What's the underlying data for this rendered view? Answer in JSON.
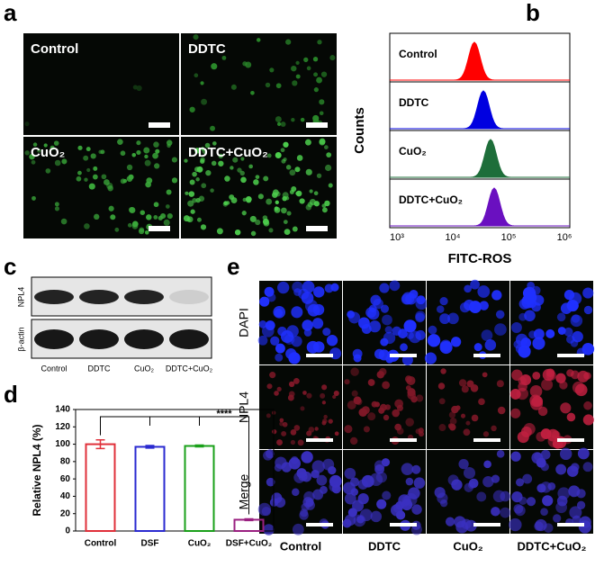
{
  "chart_data": {
    "type": "bar",
    "y_label": "Relative NPL4 (%)",
    "categories": [
      "Control",
      "DSF",
      "CuO₂",
      "DSF+CuO₂"
    ],
    "values": [
      100,
      97,
      98,
      13
    ],
    "errors": [
      5,
      1.5,
      1,
      1
    ],
    "colors": [
      "#e0303a",
      "#2a2ad0",
      "#1aa01a",
      "#9a2080"
    ],
    "ylim": [
      0,
      140
    ],
    "yticks": [
      0,
      20,
      40,
      60,
      80,
      100,
      120,
      140
    ],
    "annotation": "****"
  },
  "panels": {
    "a": {
      "letter": "a",
      "labels": [
        "Control",
        "DDTC",
        "CuO₂",
        "DDTC+CuO₂"
      ]
    },
    "b": {
      "letter": "b",
      "labels": [
        "Control",
        "DDTC",
        "CuO₂",
        "DDTC+CuO₂"
      ],
      "y_label": "Counts",
      "x_label": "FITC-ROS",
      "xticks": [
        "10³",
        "10⁴",
        "10⁵",
        "10⁶"
      ]
    },
    "c": {
      "letter": "c",
      "rows": [
        "NPL4",
        "β-actin"
      ],
      "columns": [
        "Control",
        "DDTC",
        "CuO₂",
        "DDTC+CuO₂"
      ]
    },
    "d": {
      "letter": "d"
    },
    "e": {
      "letter": "e",
      "rows": [
        "DAPI",
        "NPL4",
        "Merge"
      ],
      "columns": [
        "Control",
        "DDTC",
        "CuO₂",
        "DDTC+CuO₂"
      ]
    }
  }
}
